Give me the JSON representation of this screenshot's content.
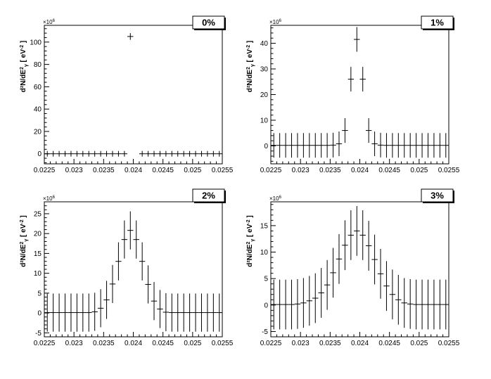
{
  "figure": {
    "ylabel_main": "d²N/dE",
    "ylabel_sub": "γ",
    "ylabel_sup": "2",
    "ylabel_unit": " [ eV",
    "ylabel_unit_sup": "-2",
    "ylabel_close": " ]",
    "exponent_base": "×10",
    "exponent_power": "6"
  },
  "chart_data": [
    {
      "type": "scatter",
      "title": "0%",
      "xlim": [
        0.0225,
        0.0255
      ],
      "ylim": [
        -9,
        115
      ],
      "xticks": [
        "0.0225",
        "0.023",
        "0.0235",
        "0.024",
        "0.0245",
        "0.025",
        "0.0255"
      ],
      "yticks": [
        "0",
        "20",
        "40",
        "60",
        "80",
        "100"
      ],
      "bin_width": 0.0001,
      "points": [
        {
          "x": 0.02255,
          "y": 0,
          "err": 0
        },
        {
          "x": 0.02265,
          "y": 0,
          "err": 0
        },
        {
          "x": 0.02275,
          "y": 0,
          "err": 0
        },
        {
          "x": 0.02285,
          "y": 0,
          "err": 0
        },
        {
          "x": 0.02295,
          "y": 0,
          "err": 0
        },
        {
          "x": 0.02305,
          "y": 0,
          "err": 0
        },
        {
          "x": 0.02315,
          "y": 0,
          "err": 0
        },
        {
          "x": 0.02325,
          "y": 0,
          "err": 0
        },
        {
          "x": 0.02335,
          "y": 0,
          "err": 0
        },
        {
          "x": 0.02345,
          "y": 0,
          "err": 0
        },
        {
          "x": 0.02355,
          "y": 0,
          "err": 0
        },
        {
          "x": 0.02365,
          "y": 0,
          "err": 0
        },
        {
          "x": 0.02375,
          "y": 0,
          "err": 0
        },
        {
          "x": 0.02385,
          "y": 0,
          "err": 0
        },
        {
          "x": 0.02395,
          "y": 105,
          "err": 3
        },
        {
          "x": 0.02415,
          "y": 0,
          "err": 0
        },
        {
          "x": 0.02425,
          "y": 0,
          "err": 0
        },
        {
          "x": 0.02435,
          "y": 0,
          "err": 0
        },
        {
          "x": 0.02445,
          "y": 0,
          "err": 0
        },
        {
          "x": 0.02455,
          "y": 0,
          "err": 0
        },
        {
          "x": 0.02465,
          "y": 0,
          "err": 0
        },
        {
          "x": 0.02475,
          "y": 0,
          "err": 0
        },
        {
          "x": 0.02485,
          "y": 0,
          "err": 0
        },
        {
          "x": 0.02495,
          "y": 0,
          "err": 0
        },
        {
          "x": 0.02505,
          "y": 0,
          "err": 0
        },
        {
          "x": 0.02515,
          "y": 0,
          "err": 0
        },
        {
          "x": 0.02525,
          "y": 0,
          "err": 0
        },
        {
          "x": 0.02535,
          "y": 0,
          "err": 0
        },
        {
          "x": 0.02545,
          "y": 0,
          "err": 0
        }
      ]
    },
    {
      "type": "scatter",
      "title": "1%",
      "xlim": [
        0.0225,
        0.0255
      ],
      "ylim": [
        -7,
        47
      ],
      "xticks": [
        "0.0225",
        "0.023",
        "0.0235",
        "0.024",
        "0.0245",
        "0.025",
        "0.0255"
      ],
      "yticks": [
        "0",
        "10",
        "20",
        "30",
        "40"
      ],
      "bin_width": 0.0001,
      "points": [
        {
          "x": 0.02255,
          "y": 0.2,
          "err": 4.8
        },
        {
          "x": 0.02265,
          "y": 0.2,
          "err": 4.8
        },
        {
          "x": 0.02275,
          "y": 0.2,
          "err": 4.8
        },
        {
          "x": 0.02285,
          "y": 0.2,
          "err": 4.8
        },
        {
          "x": 0.02295,
          "y": 0.2,
          "err": 4.8
        },
        {
          "x": 0.02305,
          "y": 0.2,
          "err": 4.8
        },
        {
          "x": 0.02315,
          "y": 0.2,
          "err": 4.8
        },
        {
          "x": 0.02325,
          "y": 0.2,
          "err": 4.8
        },
        {
          "x": 0.02335,
          "y": 0.2,
          "err": 4.8
        },
        {
          "x": 0.02345,
          "y": 0.2,
          "err": 4.8
        },
        {
          "x": 0.02355,
          "y": 0.3,
          "err": 4.8
        },
        {
          "x": 0.02365,
          "y": 0.8,
          "err": 4.8
        },
        {
          "x": 0.02375,
          "y": 6,
          "err": 4.8
        },
        {
          "x": 0.02385,
          "y": 26,
          "err": 4.8
        },
        {
          "x": 0.02395,
          "y": 41.5,
          "err": 4.8
        },
        {
          "x": 0.02405,
          "y": 26,
          "err": 4.8
        },
        {
          "x": 0.02415,
          "y": 6,
          "err": 4.8
        },
        {
          "x": 0.02425,
          "y": 0.8,
          "err": 4.8
        },
        {
          "x": 0.02435,
          "y": 0.3,
          "err": 4.8
        },
        {
          "x": 0.02445,
          "y": 0.2,
          "err": 4.8
        },
        {
          "x": 0.02455,
          "y": 0.2,
          "err": 4.8
        },
        {
          "x": 0.02465,
          "y": 0.2,
          "err": 4.8
        },
        {
          "x": 0.02475,
          "y": 0.2,
          "err": 4.8
        },
        {
          "x": 0.02485,
          "y": 0.2,
          "err": 4.8
        },
        {
          "x": 0.02495,
          "y": 0.2,
          "err": 4.8
        },
        {
          "x": 0.02505,
          "y": 0.2,
          "err": 4.8
        },
        {
          "x": 0.02515,
          "y": 0.2,
          "err": 4.8
        },
        {
          "x": 0.02525,
          "y": 0.2,
          "err": 4.8
        },
        {
          "x": 0.02535,
          "y": 0.2,
          "err": 4.8
        },
        {
          "x": 0.02545,
          "y": 0.2,
          "err": 4.8
        }
      ]
    },
    {
      "type": "scatter",
      "title": "2%",
      "xlim": [
        0.0225,
        0.0255
      ],
      "ylim": [
        -6,
        28
      ],
      "xticks": [
        "0.0225",
        "0.023",
        "0.0235",
        "0.024",
        "0.0245",
        "0.025",
        "0.0255"
      ],
      "yticks": [
        "-5",
        "0",
        "5",
        "10",
        "15",
        "20",
        "25"
      ],
      "bin_width": 0.0001,
      "points": [
        {
          "x": 0.02255,
          "y": 0.1,
          "err": 4.8
        },
        {
          "x": 0.02265,
          "y": 0.1,
          "err": 4.8
        },
        {
          "x": 0.02275,
          "y": 0.1,
          "err": 4.8
        },
        {
          "x": 0.02285,
          "y": 0.1,
          "err": 4.8
        },
        {
          "x": 0.02295,
          "y": 0.1,
          "err": 4.8
        },
        {
          "x": 0.02305,
          "y": 0.1,
          "err": 4.8
        },
        {
          "x": 0.02315,
          "y": 0.1,
          "err": 4.8
        },
        {
          "x": 0.02325,
          "y": 0.1,
          "err": 4.8
        },
        {
          "x": 0.02335,
          "y": 0.3,
          "err": 4.8
        },
        {
          "x": 0.02345,
          "y": 1.2,
          "err": 4.8
        },
        {
          "x": 0.02355,
          "y": 3.3,
          "err": 4.8
        },
        {
          "x": 0.02365,
          "y": 7.3,
          "err": 4.8
        },
        {
          "x": 0.02375,
          "y": 13,
          "err": 4.8
        },
        {
          "x": 0.02385,
          "y": 18.5,
          "err": 4.8
        },
        {
          "x": 0.02395,
          "y": 20.8,
          "err": 4.8
        },
        {
          "x": 0.02405,
          "y": 18.5,
          "err": 4.8
        },
        {
          "x": 0.02415,
          "y": 13,
          "err": 4.8
        },
        {
          "x": 0.02425,
          "y": 7.2,
          "err": 4.8
        },
        {
          "x": 0.02435,
          "y": 3,
          "err": 4.8
        },
        {
          "x": 0.02445,
          "y": 1,
          "err": 4.8
        },
        {
          "x": 0.02455,
          "y": 0.2,
          "err": 4.8
        },
        {
          "x": 0.02465,
          "y": 0.1,
          "err": 4.8
        },
        {
          "x": 0.02475,
          "y": 0.1,
          "err": 4.8
        },
        {
          "x": 0.02485,
          "y": 0.1,
          "err": 4.8
        },
        {
          "x": 0.02495,
          "y": 0.1,
          "err": 4.8
        },
        {
          "x": 0.02505,
          "y": 0.1,
          "err": 4.8
        },
        {
          "x": 0.02515,
          "y": 0.1,
          "err": 4.8
        },
        {
          "x": 0.02525,
          "y": 0.1,
          "err": 4.8
        },
        {
          "x": 0.02535,
          "y": 0.1,
          "err": 4.8
        },
        {
          "x": 0.02545,
          "y": 0.1,
          "err": 4.8
        }
      ]
    },
    {
      "type": "scatter",
      "title": "3%",
      "xlim": [
        0.0225,
        0.0255
      ],
      "ylim": [
        -6,
        19.5
      ],
      "xticks": [
        "0.0225",
        "0.023",
        "0.0235",
        "0.024",
        "0.0245",
        "0.025",
        "0.0255"
      ],
      "yticks": [
        "-5",
        "0",
        "5",
        "10",
        "15"
      ],
      "bin_width": 0.0001,
      "points": [
        {
          "x": 0.02255,
          "y": 0.1,
          "err": 4.7
        },
        {
          "x": 0.02265,
          "y": 0.1,
          "err": 4.7
        },
        {
          "x": 0.02275,
          "y": 0.1,
          "err": 4.7
        },
        {
          "x": 0.02285,
          "y": 0.1,
          "err": 4.7
        },
        {
          "x": 0.02295,
          "y": 0.2,
          "err": 4.7
        },
        {
          "x": 0.02305,
          "y": 0.4,
          "err": 4.7
        },
        {
          "x": 0.02315,
          "y": 0.8,
          "err": 4.7
        },
        {
          "x": 0.02325,
          "y": 1.3,
          "err": 4.7
        },
        {
          "x": 0.02335,
          "y": 2.3,
          "err": 4.7
        },
        {
          "x": 0.02345,
          "y": 3.8,
          "err": 4.7
        },
        {
          "x": 0.02355,
          "y": 6.1,
          "err": 4.7
        },
        {
          "x": 0.02365,
          "y": 8.7,
          "err": 4.7
        },
        {
          "x": 0.02375,
          "y": 11.3,
          "err": 4.7
        },
        {
          "x": 0.02385,
          "y": 13.2,
          "err": 4.7
        },
        {
          "x": 0.02395,
          "y": 14,
          "err": 4.7
        },
        {
          "x": 0.02405,
          "y": 13.2,
          "err": 4.7
        },
        {
          "x": 0.02415,
          "y": 11.2,
          "err": 4.7
        },
        {
          "x": 0.02425,
          "y": 8.6,
          "err": 4.7
        },
        {
          "x": 0.02435,
          "y": 5.9,
          "err": 4.7
        },
        {
          "x": 0.02445,
          "y": 3.6,
          "err": 4.7
        },
        {
          "x": 0.02455,
          "y": 2,
          "err": 4.7
        },
        {
          "x": 0.02465,
          "y": 1,
          "err": 4.7
        },
        {
          "x": 0.02475,
          "y": 0.4,
          "err": 4.7
        },
        {
          "x": 0.02485,
          "y": 0.2,
          "err": 4.7
        },
        {
          "x": 0.02495,
          "y": 0.1,
          "err": 4.7
        },
        {
          "x": 0.02505,
          "y": 0.1,
          "err": 4.7
        },
        {
          "x": 0.02515,
          "y": 0.1,
          "err": 4.7
        },
        {
          "x": 0.02525,
          "y": 0.1,
          "err": 4.7
        },
        {
          "x": 0.02535,
          "y": 0.1,
          "err": 4.7
        },
        {
          "x": 0.02545,
          "y": 0.1,
          "err": 4.7
        }
      ]
    }
  ]
}
